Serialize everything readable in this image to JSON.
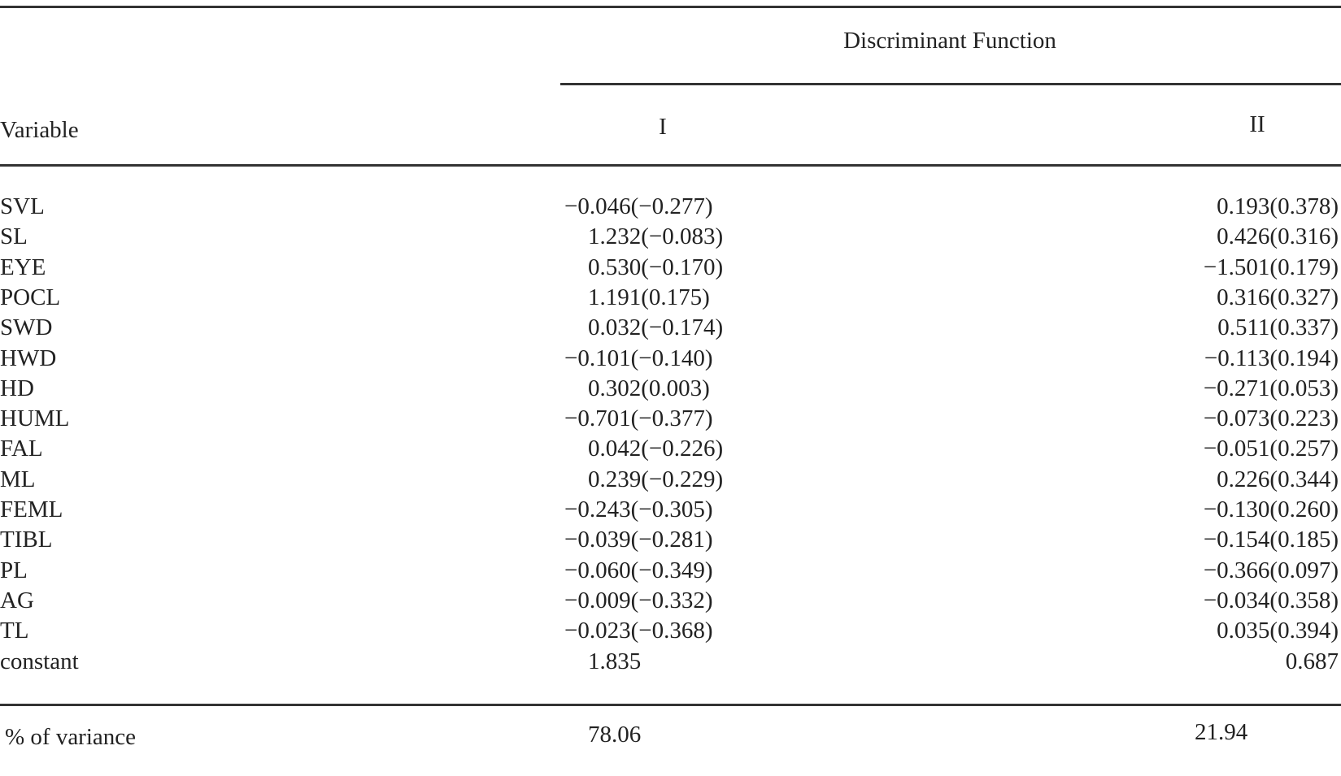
{
  "table": {
    "super_header": "Discriminant Function",
    "header": [
      "Variable",
      "I",
      "II"
    ],
    "rows": [
      [
        "SVL",
        "−0.046(−0.277)",
        "0.193(0.378)"
      ],
      [
        "SL",
        "1.232(−0.083)",
        "0.426(0.316)"
      ],
      [
        "EYE",
        "0.530(−0.170)",
        "−1.501(0.179)"
      ],
      [
        "POCL",
        "1.191(0.175)",
        "0.316(0.327)"
      ],
      [
        "SWD",
        "0.032(−0.174)",
        "0.511(0.337)"
      ],
      [
        "HWD",
        "−0.101(−0.140)",
        "−0.113(0.194)"
      ],
      [
        "HD",
        "0.302(0.003)",
        "−0.271(0.053)"
      ],
      [
        "HUML",
        "−0.701(−0.377)",
        "−0.073(0.223)"
      ],
      [
        "FAL",
        "0.042(−0.226)",
        "−0.051(0.257)"
      ],
      [
        "ML",
        "0.239(−0.229)",
        "0.226(0.344)"
      ],
      [
        "FEML",
        "−0.243(−0.305)",
        "−0.130(0.260)"
      ],
      [
        "TIBL",
        "−0.039(−0.281)",
        "−0.154(0.185)"
      ],
      [
        "PL",
        "−0.060(−0.349)",
        "−0.366(0.097)"
      ],
      [
        "AG",
        "−0.009(−0.332)",
        "−0.034(0.358)"
      ],
      [
        "TL",
        "−0.023(−0.368)",
        "0.035(0.394)"
      ],
      [
        "constant",
        "1.835",
        "0.687"
      ]
    ],
    "footer": [
      "% of variance",
      "78.06",
      "21.94"
    ]
  }
}
